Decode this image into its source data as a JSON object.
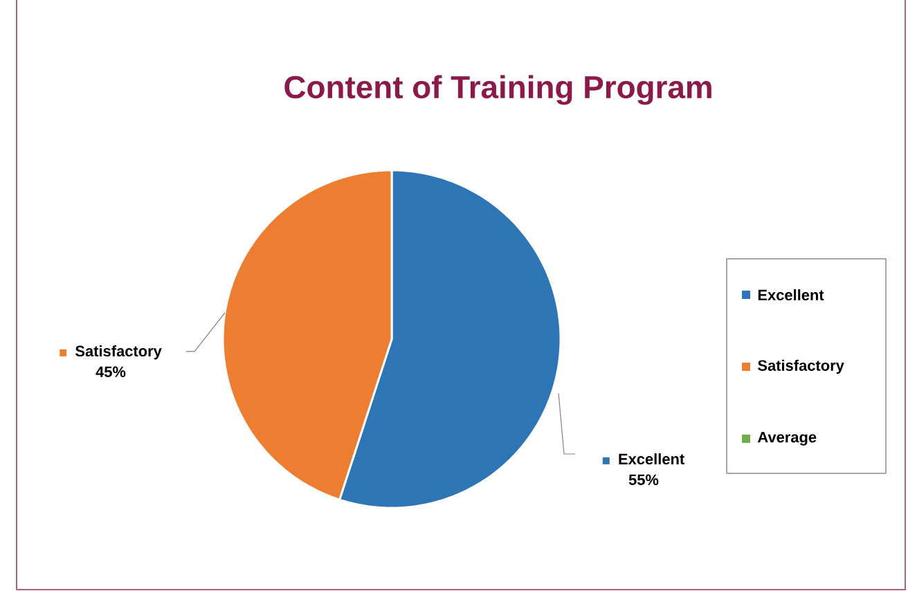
{
  "chart_data": {
    "type": "pie",
    "title": "Content of Training Program",
    "categories": [
      "Excellent",
      "Satisfactory",
      "Average"
    ],
    "values": [
      55,
      45,
      0
    ],
    "colors": [
      "#2e75b6",
      "#ed7d31",
      "#70ad47"
    ],
    "value_labels": [
      "55%",
      "45%",
      null
    ],
    "legend": "right"
  }
}
